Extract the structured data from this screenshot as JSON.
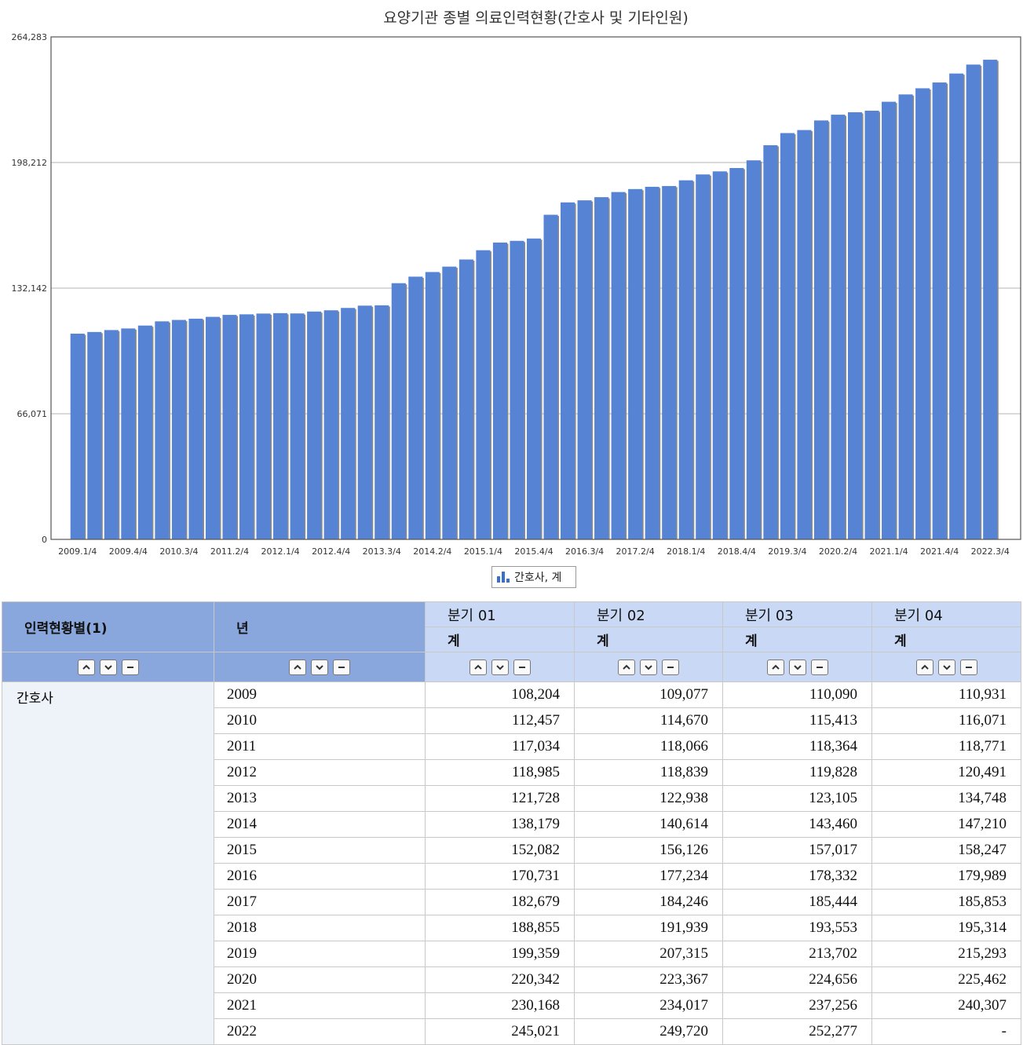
{
  "chart_data": {
    "type": "bar",
    "title": "요양기관 종별 의료인력현황(간호사 및 기타인원)",
    "yticks": [
      "0",
      "66,071",
      "132,142",
      "198,212",
      "264,283"
    ],
    "ylim": [
      0,
      264283
    ],
    "grid": true,
    "legend_position": "bottom-center",
    "xtick_labels": [
      "2009.1/4",
      "2009.4/4",
      "2010.3/4",
      "2011.2/4",
      "2012.1/4",
      "2012.4/4",
      "2013.3/4",
      "2014.2/4",
      "2015.1/4",
      "2015.4/4",
      "2016.3/4",
      "2017.2/4",
      "2018.1/4",
      "2018.4/4",
      "2019.3/4",
      "2020.2/4",
      "2021.1/4",
      "2021.4/4",
      "2022.3/4"
    ],
    "categories": [
      "2009.1/4",
      "2009.2/4",
      "2009.3/4",
      "2009.4/4",
      "2010.1/4",
      "2010.2/4",
      "2010.3/4",
      "2010.4/4",
      "2011.1/4",
      "2011.2/4",
      "2011.3/4",
      "2011.4/4",
      "2012.1/4",
      "2012.2/4",
      "2012.3/4",
      "2012.4/4",
      "2013.1/4",
      "2013.2/4",
      "2013.3/4",
      "2013.4/4",
      "2014.1/4",
      "2014.2/4",
      "2014.3/4",
      "2014.4/4",
      "2015.1/4",
      "2015.2/4",
      "2015.3/4",
      "2015.4/4",
      "2016.1/4",
      "2016.2/4",
      "2016.3/4",
      "2016.4/4",
      "2017.1/4",
      "2017.2/4",
      "2017.3/4",
      "2017.4/4",
      "2018.1/4",
      "2018.2/4",
      "2018.3/4",
      "2018.4/4",
      "2019.1/4",
      "2019.2/4",
      "2019.3/4",
      "2019.4/4",
      "2020.1/4",
      "2020.2/4",
      "2020.3/4",
      "2020.4/4",
      "2021.1/4",
      "2021.2/4",
      "2021.3/4",
      "2021.4/4",
      "2022.1/4",
      "2022.2/4",
      "2022.3/4"
    ],
    "series": [
      {
        "name": "간호사, 계",
        "color": "#5683d4",
        "values": [
          108204,
          109077,
          110090,
          110931,
          112457,
          114670,
          115413,
          116071,
          117034,
          118066,
          118364,
          118771,
          118985,
          118839,
          119828,
          120491,
          121728,
          122938,
          123105,
          134748,
          138179,
          140614,
          143460,
          147210,
          152082,
          156126,
          157017,
          158247,
          170731,
          177234,
          178332,
          179989,
          182679,
          184246,
          185444,
          185853,
          188855,
          191939,
          193553,
          195314,
          199359,
          207315,
          213702,
          215293,
          220342,
          223367,
          224656,
          225462,
          230168,
          234017,
          237256,
          240307,
          245021,
          249720,
          252277
        ]
      }
    ]
  },
  "legend": {
    "label": "간호사, 계"
  },
  "table": {
    "headers": {
      "dim1": "인력현황별(1)",
      "dim2": "년",
      "quarters": [
        "분기 01",
        "분기 02",
        "분기 03",
        "분기 04"
      ],
      "sub": [
        "계",
        "계",
        "계",
        "계"
      ]
    },
    "category": "간호사",
    "rows": [
      {
        "year": "2009",
        "values": [
          "108,204",
          "109,077",
          "110,090",
          "110,931"
        ]
      },
      {
        "year": "2010",
        "values": [
          "112,457",
          "114,670",
          "115,413",
          "116,071"
        ]
      },
      {
        "year": "2011",
        "values": [
          "117,034",
          "118,066",
          "118,364",
          "118,771"
        ]
      },
      {
        "year": "2012",
        "values": [
          "118,985",
          "118,839",
          "119,828",
          "120,491"
        ]
      },
      {
        "year": "2013",
        "values": [
          "121,728",
          "122,938",
          "123,105",
          "134,748"
        ]
      },
      {
        "year": "2014",
        "values": [
          "138,179",
          "140,614",
          "143,460",
          "147,210"
        ]
      },
      {
        "year": "2015",
        "values": [
          "152,082",
          "156,126",
          "157,017",
          "158,247"
        ]
      },
      {
        "year": "2016",
        "values": [
          "170,731",
          "177,234",
          "178,332",
          "179,989"
        ]
      },
      {
        "year": "2017",
        "values": [
          "182,679",
          "184,246",
          "185,444",
          "185,853"
        ]
      },
      {
        "year": "2018",
        "values": [
          "188,855",
          "191,939",
          "193,553",
          "195,314"
        ]
      },
      {
        "year": "2019",
        "values": [
          "199,359",
          "207,315",
          "213,702",
          "215,293"
        ]
      },
      {
        "year": "2020",
        "values": [
          "220,342",
          "223,367",
          "224,656",
          "225,462"
        ]
      },
      {
        "year": "2021",
        "values": [
          "230,168",
          "234,017",
          "237,256",
          "240,307"
        ]
      },
      {
        "year": "2022",
        "values": [
          "245,021",
          "249,720",
          "252,277",
          "-"
        ]
      }
    ]
  }
}
